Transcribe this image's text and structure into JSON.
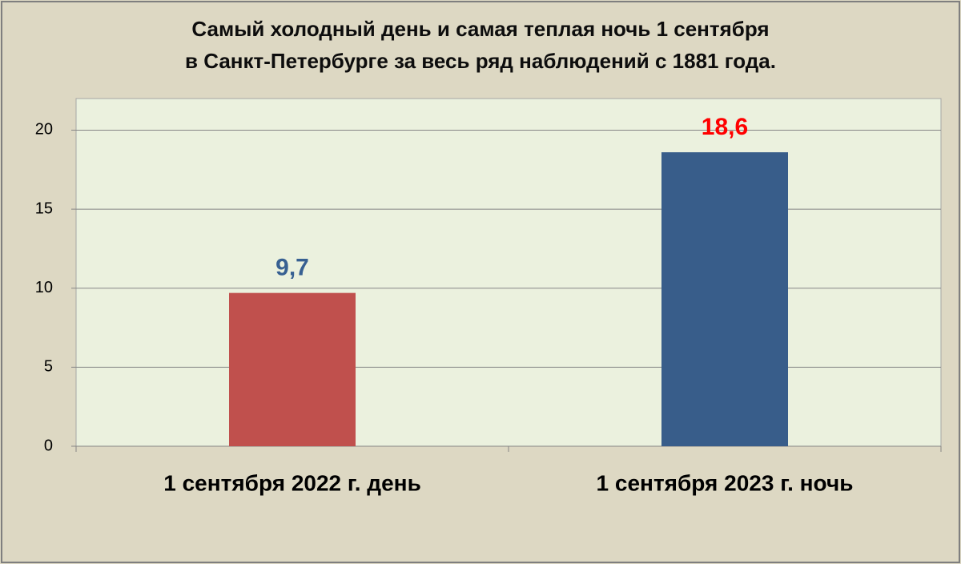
{
  "chart_data": {
    "type": "bar",
    "title": [
      "Самый холодный день и самая теплая ночь 1 сентября",
      "в Санкт-Петербурге за весь ряд наблюдений с 1881 года."
    ],
    "categories": [
      "1 сентября 2022 г. день",
      "1 сентября 2023 г. ночь"
    ],
    "values": [
      9.7,
      18.6
    ],
    "value_labels": [
      "9,7",
      "18,6"
    ],
    "colors": [
      "#c0504d",
      "#385d8a"
    ],
    "value_label_colors": [
      "#376092",
      "#ff0000"
    ],
    "ylim": [
      0,
      22
    ],
    "yticks": [
      0,
      5,
      10,
      15,
      20
    ],
    "grid": true
  }
}
